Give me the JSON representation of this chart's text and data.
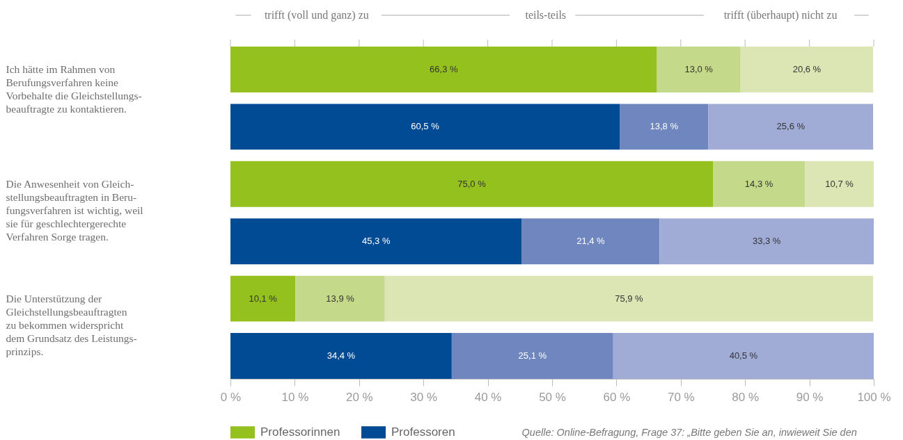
{
  "chart_data": {
    "type": "bar",
    "orientation": "horizontal",
    "stacked": true,
    "categories": [
      "Ich hätte im Rahmen von\nBerufungsverfahren keine\nVorbehalte die Gleichstellungs-\nbeauftragte zu kontaktieren.",
      null,
      "Die Anwesenheit von Gleich-\nstellungsbeauftragten in Beru-\nfungsverfahren ist wichtig, weil\nsie für geschlechtergerechte\nVerfahren Sorge tragen.",
      null,
      "Die Unterstützung der\nGleichstellungsbeauftragten\nzu bekommen widerspricht\ndem Grundsatz des Leistungs-\nprinzips.",
      null
    ],
    "series": [
      {
        "name": "Professorinnen",
        "color": "#95c11f",
        "values": [
          66.3,
          null,
          75.0,
          null,
          10.1,
          null
        ],
        "value_labels": [
          "66,3 %",
          null,
          "75,0 %",
          null,
          "10,1 %",
          null
        ]
      },
      {
        "color": "#c5d98a",
        "values": [
          13.0,
          null,
          14.3,
          null,
          13.9,
          null
        ],
        "value_labels": [
          "13,0 %",
          null,
          "14,3 %",
          null,
          "13,9 %",
          null
        ]
      },
      {
        "color": "#dbe6b4",
        "values": [
          20.6,
          null,
          10.7,
          null,
          75.9,
          null
        ],
        "value_labels": [
          "20,6 %",
          null,
          "10,7 %",
          null,
          "75,9 %",
          null
        ]
      },
      {
        "name": "Professoren",
        "color": "#004b93",
        "values": [
          null,
          60.5,
          null,
          45.3,
          null,
          34.4
        ],
        "value_labels": [
          null,
          "60,5 %",
          null,
          "45,3 %",
          null,
          "34,4 %"
        ]
      },
      {
        "color": "#6f86bf",
        "values": [
          null,
          13.8,
          null,
          21.4,
          null,
          25.1
        ],
        "value_labels": [
          null,
          "13,8 %",
          null,
          "21,4 %",
          null,
          "25,1 %"
        ]
      },
      {
        "color": "#a0acd6",
        "values": [
          null,
          25.6,
          null,
          33.3,
          null,
          40.5
        ],
        "value_labels": [
          null,
          "25,6 %",
          null,
          "33,3 %",
          null,
          "40,5 %"
        ]
      }
    ],
    "xlim": [
      0,
      100
    ],
    "xticks": [
      {
        "value": 0,
        "label": "0 %"
      },
      {
        "value": 10,
        "label": "10 %"
      },
      {
        "value": 20,
        "label": "20 %"
      },
      {
        "value": 30,
        "label": "30 %"
      },
      {
        "value": 40,
        "label": "40 %"
      },
      {
        "value": 50,
        "label": "50 %"
      },
      {
        "value": 60,
        "label": "60 %"
      },
      {
        "value": 70,
        "label": "70 %"
      },
      {
        "value": 80,
        "label": "80 %"
      },
      {
        "value": 90,
        "label": "90 %"
      },
      {
        "value": 100,
        "label": "100 %"
      }
    ],
    "grid": false,
    "legend": "bottom left",
    "annotations": [
      "trifft (voll und ganz) zu",
      "teils-teils",
      "trifft (überhaupt) nicht zu",
      "Quelle: Online-Befragung, Frage 37: „Bitte geben Sie an, inwieweit Sie den"
    ]
  }
}
